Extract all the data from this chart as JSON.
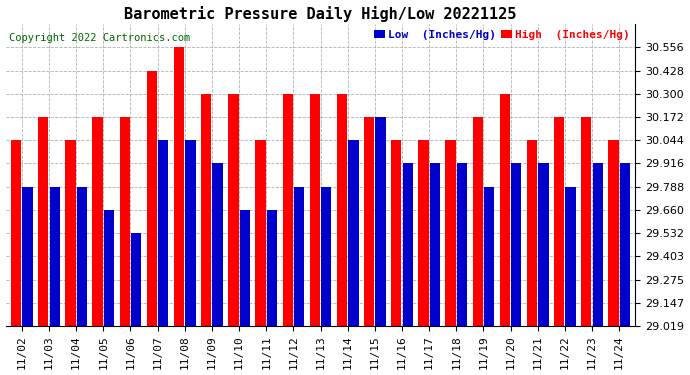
{
  "title": "Barometric Pressure Daily High/Low 20221125",
  "copyright": "Copyright 2022 Cartronics.com",
  "legend_low": "Low  (Inches/Hg)",
  "legend_high": "High  (Inches/Hg)",
  "dates": [
    "11/02",
    "11/03",
    "11/04",
    "11/05",
    "11/06",
    "11/07",
    "11/08",
    "11/09",
    "11/10",
    "11/11",
    "11/12",
    "11/13",
    "11/14",
    "11/15",
    "11/16",
    "11/17",
    "11/18",
    "11/19",
    "11/20",
    "11/21",
    "11/22",
    "11/23",
    "11/24"
  ],
  "high": [
    30.044,
    30.172,
    30.044,
    30.172,
    30.172,
    30.428,
    30.556,
    30.3,
    30.3,
    30.044,
    30.3,
    30.3,
    30.3,
    30.172,
    30.044,
    30.044,
    30.044,
    30.172,
    30.3,
    30.044,
    30.172,
    30.172,
    30.044
  ],
  "low": [
    29.788,
    29.788,
    29.788,
    29.66,
    29.532,
    30.044,
    30.044,
    29.916,
    29.66,
    29.66,
    29.788,
    29.788,
    30.044,
    30.172,
    29.916,
    29.916,
    29.916,
    29.788,
    29.916,
    29.916,
    29.788,
    29.916,
    29.916
  ],
  "high_color": "#ff0000",
  "low_color": "#0000cc",
  "bg_color": "#ffffff",
  "grid_color": "#aaaaaa",
  "ylim_min": 29.019,
  "ylim_max": 30.684,
  "yticks": [
    29.019,
    29.147,
    29.275,
    29.403,
    29.532,
    29.66,
    29.788,
    29.916,
    30.044,
    30.172,
    30.3,
    30.428,
    30.556
  ],
  "title_fontsize": 11,
  "copyright_fontsize": 7.5,
  "legend_fontsize": 8,
  "tick_fontsize": 8,
  "bar_bottom": 29.019
}
